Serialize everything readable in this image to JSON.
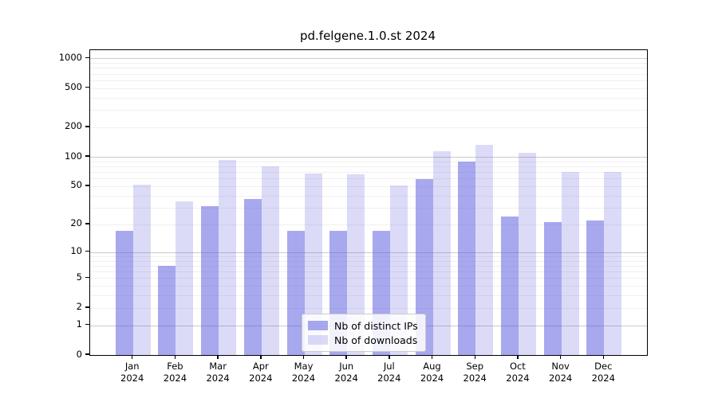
{
  "chart_data": {
    "type": "bar",
    "title": "pd.felgene.1.0.st 2024",
    "categories": [
      "Jan",
      "Feb",
      "Mar",
      "Apr",
      "May",
      "Jun",
      "Jul",
      "Aug",
      "Sep",
      "Oct",
      "Nov",
      "Dec"
    ],
    "category_year": "2024",
    "series": [
      {
        "name": "Nb of distinct IPs",
        "color": "#5555dd",
        "opacity": 0.51,
        "values": [
          17,
          7,
          31,
          37,
          17,
          17,
          17,
          59,
          90,
          24,
          21,
          22
        ]
      },
      {
        "name": "Nb of downloads",
        "color": "#5555dd",
        "opacity": 0.21,
        "values": [
          52,
          35,
          93,
          80,
          67,
          66,
          51,
          115,
          133,
          110,
          70,
          70
        ]
      }
    ],
    "yscale": "log1p",
    "yticks": [
      0,
      1,
      2,
      5,
      10,
      20,
      50,
      100,
      200,
      500,
      1000
    ],
    "ylim": [
      0,
      1210
    ],
    "xlabel": "",
    "ylabel": "",
    "grid": "horizontal, major at powers of 10, minor at 2-9 multiples",
    "legend_position": "lower center",
    "major_grid_color": "#cbcbcb",
    "minor_grid_color": "#f0f0f0",
    "spine_color": "#000000",
    "background_color": "#ffffff"
  }
}
